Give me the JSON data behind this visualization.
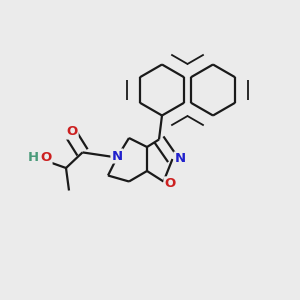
{
  "bg_color": "#ebebeb",
  "bond_color": "#1a1a1a",
  "n_color": "#2020cc",
  "o_color": "#cc2020",
  "oh_color": "#4a9a7a",
  "line_width": 1.6,
  "dbo": 0.018,
  "fig_w": 3.0,
  "fig_h": 3.0,
  "dpi": 100,
  "xlim": [
    0.0,
    1.0
  ],
  "ylim": [
    0.0,
    1.0
  ]
}
